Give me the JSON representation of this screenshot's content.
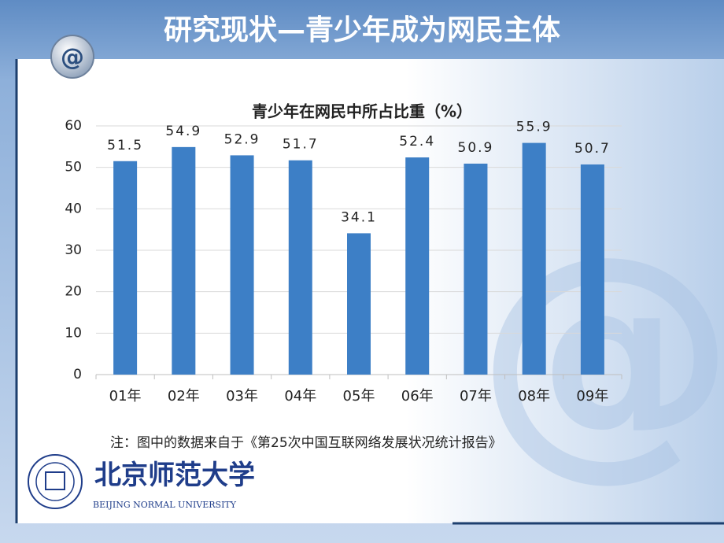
{
  "title": "研究现状—青少年成为网民主体",
  "chart_data": {
    "type": "bar",
    "title": "青少年在网民中所占比重（%）",
    "categories": [
      "01年",
      "02年",
      "03年",
      "04年",
      "05年",
      "06年",
      "07年",
      "08年",
      "09年"
    ],
    "values": [
      51.5,
      54.9,
      52.9,
      51.7,
      34.1,
      52.4,
      50.9,
      55.9,
      50.7
    ],
    "color": "#3d7fc6",
    "ylim": [
      0,
      60
    ],
    "yticks": [
      0,
      10,
      20,
      30,
      40,
      50,
      60
    ],
    "grid": true
  },
  "note": "注：图中的数据来自于《第25次中国互联网络发展状况统计报告》",
  "logo": {
    "name_cn": "北京师范大学",
    "name_en": "BEIJING NORMAL UNIVERSITY"
  }
}
